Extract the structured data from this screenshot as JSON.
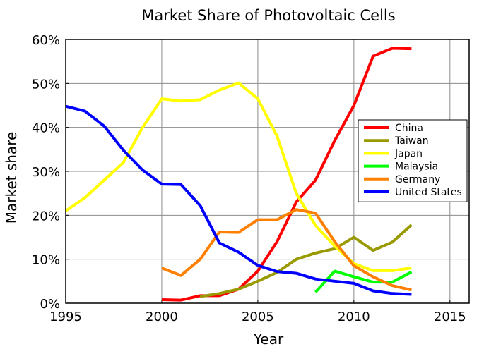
{
  "chart_data": {
    "type": "line",
    "title": "Market Share of Photovoltaic Cells",
    "xlabel": "Year",
    "ylabel": "Market share",
    "xlim": [
      1995,
      2016
    ],
    "ylim": [
      0,
      60
    ],
    "x_ticks": [
      "1995",
      "2000",
      "2005",
      "2010",
      "2015"
    ],
    "y_ticks": [
      "0%",
      "10%",
      "20%",
      "30%",
      "40%",
      "50%",
      "60%"
    ],
    "grid": true,
    "legend_position": "right",
    "series": [
      {
        "name": "China",
        "color": "#ff0000",
        "x": [
          2000,
          2001,
          2002,
          2003,
          2004,
          2005,
          2006,
          2007,
          2008,
          2009,
          2010,
          2011,
          2012,
          2013
        ],
        "values": [
          0.8,
          0.7,
          1.7,
          1.7,
          3.2,
          7.3,
          14.0,
          23.0,
          28.0,
          37.0,
          45.0,
          56.2,
          58.0,
          57.9
        ]
      },
      {
        "name": "Taiwan",
        "color": "#999900",
        "x": [
          2002,
          2003,
          2004,
          2005,
          2006,
          2007,
          2008,
          2009,
          2010,
          2011,
          2012,
          2013
        ],
        "values": [
          1.5,
          2.2,
          3.2,
          5.0,
          7.0,
          10.0,
          11.4,
          12.4,
          15.0,
          12.0,
          13.9,
          17.8
        ]
      },
      {
        "name": "Japan",
        "color": "#ffff00",
        "x": [
          1995,
          1996,
          1997,
          1998,
          1999,
          2000,
          2001,
          2002,
          2003,
          2004,
          2005,
          2006,
          2007,
          2008,
          2009,
          2010,
          2011,
          2012,
          2013
        ],
        "values": [
          21.0,
          24.0,
          28.0,
          32.0,
          40.0,
          46.5,
          46.0,
          46.3,
          48.5,
          50.1,
          46.5,
          38.0,
          25.0,
          17.7,
          13.0,
          9.0,
          7.4,
          7.4,
          8.0
        ]
      },
      {
        "name": "Malaysia",
        "color": "#00ff00",
        "x": [
          2008,
          2009,
          2010,
          2011,
          2012,
          2013
        ],
        "values": [
          2.5,
          7.3,
          6.0,
          4.8,
          4.8,
          7.1
        ]
      },
      {
        "name": "Germany",
        "color": "#ff8000",
        "x": [
          2000,
          2001,
          2002,
          2003,
          2004,
          2005,
          2006,
          2007,
          2008,
          2009,
          2010,
          2011,
          2012,
          2013
        ],
        "values": [
          8.0,
          6.3,
          10.0,
          16.2,
          16.1,
          19.0,
          19.0,
          21.3,
          20.5,
          14.0,
          8.5,
          6.0,
          4.0,
          3.0
        ]
      },
      {
        "name": "United States",
        "color": "#0000ff",
        "x": [
          1995,
          1996,
          1997,
          1998,
          1999,
          2000,
          2001,
          2002,
          2003,
          2004,
          2005,
          2006,
          2007,
          2008,
          2009,
          2010,
          2011,
          2012,
          2013
        ],
        "values": [
          44.8,
          43.7,
          40.3,
          34.8,
          30.3,
          27.1,
          27.0,
          22.2,
          13.7,
          11.6,
          8.6,
          7.2,
          6.8,
          5.5,
          5.0,
          4.5,
          2.8,
          2.2,
          2.0
        ]
      }
    ]
  }
}
